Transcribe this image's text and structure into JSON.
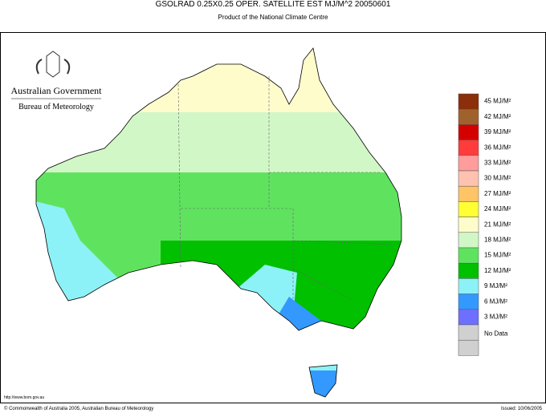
{
  "header": {
    "title": "GSOLRAD     0.25X0.25 OPER. SATELLITE EST MJ/M^2   20050601",
    "subtitle": "Product of the National Climate Centre"
  },
  "logo": {
    "line1": "Australian Government",
    "line2": "Bureau of Meteorology"
  },
  "legend": {
    "items": [
      {
        "label": "45 MJ/M²",
        "color": "#8b2e0b"
      },
      {
        "label": "42 MJ/M²",
        "color": "#a0622d"
      },
      {
        "label": "39 MJ/M²",
        "color": "#d40000"
      },
      {
        "label": "36 MJ/M²",
        "color": "#ff3b3b"
      },
      {
        "label": "33 MJ/M²",
        "color": "#ff9c9c"
      },
      {
        "label": "30 MJ/M²",
        "color": "#ffc2b0"
      },
      {
        "label": "27 MJ/M²",
        "color": "#ffc466"
      },
      {
        "label": "24 MJ/M²",
        "color": "#ffff33"
      },
      {
        "label": "21 MJ/M²",
        "color": "#fffccc"
      },
      {
        "label": "18 MJ/M²",
        "color": "#d2f7c6"
      },
      {
        "label": "15 MJ/M²",
        "color": "#5fe35f"
      },
      {
        "label": "12 MJ/M²",
        "color": "#00c000"
      },
      {
        "label": "9 MJ/M²",
        "color": "#8df2f7"
      },
      {
        "label": "6 MJ/M²",
        "color": "#3399ff"
      },
      {
        "label": "3 MJ/M²",
        "color": "#6f6fff"
      },
      {
        "label": "No Data",
        "color": "#d0d0d0"
      }
    ]
  },
  "footer": {
    "url": "http://www.bom.gov.au",
    "copyright": "© Commonwealth of Australia 2005, Australian Bureau of Meteorology",
    "issued": "Issued: 10/06/2005"
  }
}
